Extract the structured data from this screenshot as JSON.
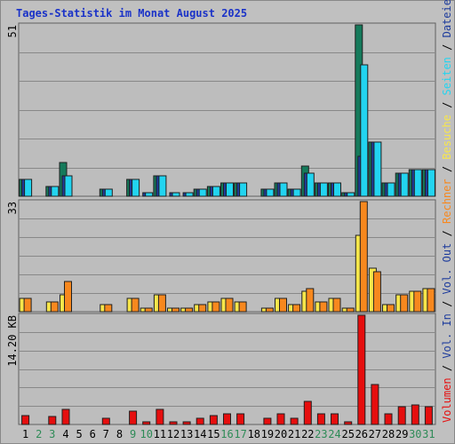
{
  "title": "Tages-Statistik im Monat August 2025",
  "chart_data": {
    "type": "bar",
    "days": [
      "1",
      "2",
      "3",
      "4",
      "5",
      "6",
      "7",
      "8",
      "9",
      "10",
      "11",
      "12",
      "13",
      "14",
      "15",
      "16",
      "17",
      "18",
      "19",
      "20",
      "21",
      "22",
      "23",
      "24",
      "25",
      "26",
      "27",
      "28",
      "29",
      "30",
      "31"
    ],
    "weekend_days": [
      "2",
      "3",
      "9",
      "10",
      "16",
      "17",
      "23",
      "24",
      "30",
      "31"
    ],
    "day_label_colors": {
      "weekday": "#000000",
      "weekend": "#2e8b57"
    },
    "panels": [
      {
        "name": "Anfragen/Dateien/Seiten",
        "scale_max_label": "51",
        "ylim": [
          0,
          51
        ],
        "series": [
          {
            "name": "Anfragen",
            "color": "#157a5b",
            "values": [
              5,
              0,
              3,
              10,
              0,
              0,
              2,
              0,
              5,
              0,
              6,
              0,
              0,
              2,
              3,
              4,
              4,
              0,
              2,
              4,
              2,
              9,
              4,
              4,
              1,
              51,
              16,
              4,
              7,
              8,
              8
            ]
          },
          {
            "name": "Dateien",
            "color": "#1e3c9c",
            "values": [
              5,
              0,
              3,
              6,
              0,
              0,
              2,
              0,
              5,
              1,
              6,
              1,
              1,
              2,
              3,
              4,
              4,
              0,
              2,
              4,
              2,
              7,
              4,
              4,
              1,
              12,
              16,
              4,
              7,
              8,
              8
            ]
          },
          {
            "name": "Seiten",
            "color": "#22d4f0",
            "values": [
              5,
              0,
              3,
              6,
              0,
              0,
              2,
              0,
              5,
              1,
              6,
              1,
              1,
              2,
              3,
              4,
              4,
              0,
              2,
              4,
              2,
              7,
              4,
              4,
              1,
              39,
              16,
              4,
              7,
              8,
              8
            ]
          }
        ]
      },
      {
        "name": "Besuche/Rechner",
        "scale_max_label": "33",
        "ylim": [
          0,
          33
        ],
        "series": [
          {
            "name": "Besuche",
            "color": "#f8e64a",
            "values": [
              4,
              0,
              3,
              5,
              0,
              0,
              2,
              0,
              4,
              1,
              5,
              1,
              1,
              2,
              3,
              4,
              3,
              0,
              1,
              4,
              2,
              6,
              3,
              4,
              1,
              23,
              13,
              2,
              5,
              6,
              7
            ]
          },
          {
            "name": "Rechner",
            "color": "#f7881e",
            "values": [
              4,
              0,
              3,
              9,
              0,
              0,
              2,
              0,
              4,
              1,
              5,
              1,
              1,
              2,
              3,
              4,
              3,
              0,
              1,
              4,
              2,
              7,
              3,
              4,
              1,
              33,
              12,
              2,
              5,
              6,
              7
            ]
          }
        ]
      },
      {
        "name": "Volumen",
        "scale_max_label": "14.20 KB",
        "ylim": [
          0,
          14.2
        ],
        "series": [
          {
            "name": "Volumen",
            "color": "#e60e0e",
            "values": [
              1.1,
              0,
              1,
              2,
              0,
              0,
              0.8,
              0,
              1.7,
              0.4,
              2,
              0.4,
              0.4,
              0.8,
              1.1,
              1.4,
              1.4,
              0,
              0.8,
              1.4,
              0.8,
              3,
              1.4,
              1.4,
              0.4,
              14.2,
              5.2,
              1.4,
              2.3,
              2.5,
              2.3
            ]
          }
        ]
      }
    ],
    "right_axis_labels": [
      {
        "text": "Anfragen",
        "color": "#157a5b"
      },
      {
        "text": "Dateien",
        "color": "#1e3c9c"
      },
      {
        "text": "Seiten",
        "color": "#22d4f0"
      },
      {
        "text": "Besuche",
        "color": "#f8e64a"
      },
      {
        "text": "Rechner",
        "color": "#f7881e"
      },
      {
        "text": "Vol. Out",
        "color": "#1e3c9c"
      },
      {
        "text": "Vol. In",
        "color": "#1e3c9c"
      },
      {
        "text": "Volumen",
        "color": "#e60e0e"
      }
    ]
  }
}
